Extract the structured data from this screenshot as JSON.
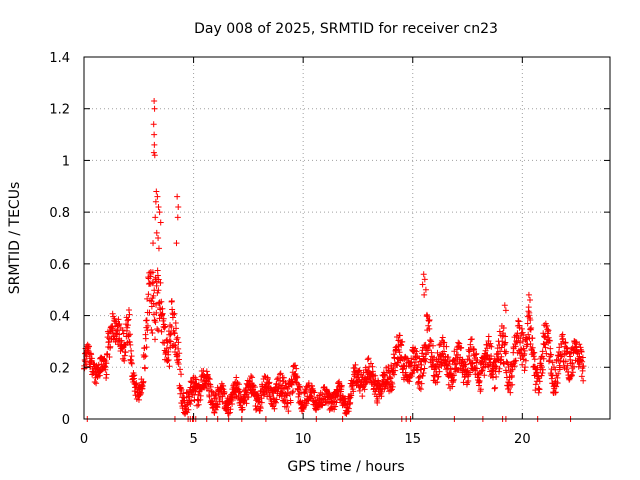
{
  "chart_data": {
    "type": "scatter",
    "title": "Day 008 of 2025, SRMTID for receiver cn23",
    "xlabel": "GPS time / hours",
    "ylabel": "SRMTID / TECUs",
    "xlim": [
      0,
      24
    ],
    "ylim": [
      0,
      1.4
    ],
    "xticks": [
      0,
      5,
      10,
      15,
      20
    ],
    "xtick_labels": [
      "0",
      "5",
      "10",
      "15",
      "20"
    ],
    "yticks": [
      0,
      0.2,
      0.4,
      0.6,
      0.8,
      1.0,
      1.2,
      1.4
    ],
    "ytick_labels": [
      "0",
      "0.2",
      "0.4",
      "0.6",
      "0.8",
      "1",
      "1.2",
      "1.4"
    ],
    "grid": true,
    "marker": "plus",
    "color": "#ff0000",
    "series": [
      {
        "name": "SRMTID",
        "trend": {
          "x": [
            0,
            0.3,
            0.6,
            0.9,
            1.0,
            1.1,
            1.3,
            1.5,
            1.8,
            2.0,
            2.2,
            2.4,
            2.6,
            2.8,
            3.0,
            3.2,
            3.4,
            3.6,
            3.8,
            4.0,
            4.2,
            4.5,
            4.8,
            5.1,
            5.4,
            5.7,
            6.0,
            6.3,
            6.6,
            7.0,
            7.5,
            8.0,
            8.5,
            9.0,
            9.3,
            9.6,
            10.0,
            10.5,
            11.0,
            11.5,
            12.0,
            12.3,
            12.6,
            13.0,
            13.3,
            13.6,
            14.0,
            14.5,
            15.0,
            15.3,
            15.6,
            16.0,
            16.5,
            17.0,
            17.5,
            18.0,
            18.5,
            19.0,
            19.5,
            20.0,
            20.3,
            20.6,
            21.0,
            21.5,
            22.0,
            22.5,
            22.8
          ],
          "y": [
            0.22,
            0.22,
            0.2,
            0.17,
            0.18,
            0.32,
            0.38,
            0.3,
            0.32,
            0.42,
            0.15,
            0.11,
            0.14,
            0.22,
            0.48,
            0.55,
            0.45,
            0.3,
            0.28,
            0.4,
            0.25,
            0.1,
            0.06,
            0.12,
            0.15,
            0.12,
            0.08,
            0.08,
            0.07,
            0.1,
            0.1,
            0.09,
            0.11,
            0.1,
            0.12,
            0.13,
            0.09,
            0.08,
            0.07,
            0.09,
            0.07,
            0.12,
            0.17,
            0.16,
            0.15,
            0.1,
            0.2,
            0.25,
            0.18,
            0.22,
            0.28,
            0.24,
            0.22,
            0.2,
            0.22,
            0.2,
            0.22,
            0.25,
            0.2,
            0.3,
            0.35,
            0.15,
            0.28,
            0.18,
            0.25,
            0.22,
            0.24
          ],
          "spread": [
            0.05,
            0.05,
            0.05,
            0.05,
            0.05,
            0.08,
            0.08,
            0.07,
            0.08,
            0.12,
            0.05,
            0.04,
            0.05,
            0.08,
            0.15,
            0.2,
            0.15,
            0.1,
            0.09,
            0.12,
            0.1,
            0.06,
            0.05,
            0.06,
            0.06,
            0.05,
            0.05,
            0.05,
            0.04,
            0.05,
            0.05,
            0.05,
            0.05,
            0.06,
            0.07,
            0.06,
            0.05,
            0.04,
            0.04,
            0.05,
            0.04,
            0.06,
            0.06,
            0.06,
            0.06,
            0.05,
            0.07,
            0.08,
            0.07,
            0.08,
            0.1,
            0.08,
            0.07,
            0.07,
            0.08,
            0.08,
            0.08,
            0.1,
            0.08,
            0.1,
            0.1,
            0.06,
            0.09,
            0.07,
            0.08,
            0.07,
            0.07
          ]
        },
        "outliers": [
          [
            3.2,
            1.23
          ],
          [
            3.22,
            1.2
          ],
          [
            3.18,
            1.14
          ],
          [
            3.2,
            1.1
          ],
          [
            3.21,
            1.06
          ],
          [
            3.19,
            1.03
          ],
          [
            3.23,
            1.02
          ],
          [
            3.3,
            0.88
          ],
          [
            3.35,
            0.86
          ],
          [
            3.28,
            0.84
          ],
          [
            3.4,
            0.82
          ],
          [
            3.45,
            0.8
          ],
          [
            3.25,
            0.78
          ],
          [
            3.5,
            0.76
          ],
          [
            3.32,
            0.72
          ],
          [
            3.38,
            0.7
          ],
          [
            3.15,
            0.68
          ],
          [
            3.42,
            0.66
          ],
          [
            4.25,
            0.86
          ],
          [
            4.3,
            0.82
          ],
          [
            4.28,
            0.78
          ],
          [
            4.22,
            0.68
          ],
          [
            15.5,
            0.56
          ],
          [
            15.55,
            0.54
          ],
          [
            15.45,
            0.52
          ],
          [
            15.6,
            0.5
          ],
          [
            15.52,
            0.48
          ],
          [
            20.3,
            0.48
          ],
          [
            20.35,
            0.46
          ],
          [
            19.2,
            0.44
          ],
          [
            19.25,
            0.42
          ]
        ],
        "zeros": [
          0.15,
          4.15,
          4.75,
          4.85,
          4.95,
          5.0,
          5.1,
          5.6,
          6.1,
          6.6,
          7.2,
          8.3,
          10.6,
          11.8,
          14.5,
          14.7,
          14.9,
          16.9,
          18.2,
          19.1,
          19.25,
          20.7,
          22.2
        ]
      }
    ]
  }
}
